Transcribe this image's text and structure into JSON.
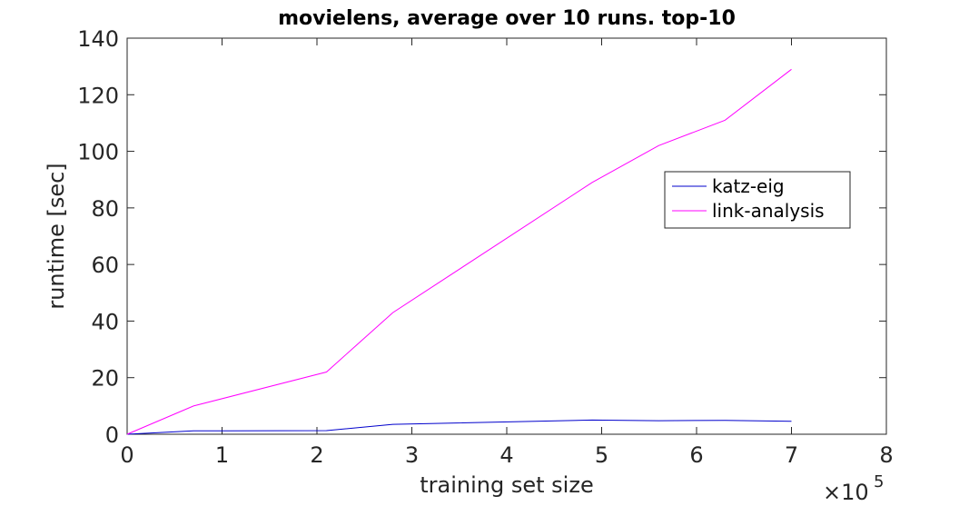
{
  "chart_data": {
    "type": "line",
    "title": "movielens, average over 10 runs. top-10",
    "xlabel": "training set size",
    "ylabel": "runtime [sec]",
    "x_multiplier": "×10",
    "x_multiplier_exp": "5",
    "xlim": [
      0,
      8
    ],
    "ylim": [
      0,
      140
    ],
    "xticks": [
      "0",
      "1",
      "2",
      "3",
      "4",
      "5",
      "6",
      "7",
      "8"
    ],
    "yticks": [
      "0",
      "20",
      "40",
      "60",
      "80",
      "100",
      "120",
      "140"
    ],
    "grid": false,
    "legend_position": "right, upper-middle",
    "x": [
      0,
      0.7,
      2.1,
      2.8,
      4.9,
      5.6,
      6.3,
      7.0
    ],
    "series": [
      {
        "name": "katz-eig",
        "color": "#0000cc",
        "values": [
          0,
          1.2,
          1.3,
          3.5,
          5.0,
          4.8,
          4.9,
          4.6
        ]
      },
      {
        "name": "link-analysis",
        "color": "#ff00ff",
        "values": [
          0,
          10,
          22,
          43,
          89,
          102,
          111,
          129
        ]
      }
    ]
  }
}
